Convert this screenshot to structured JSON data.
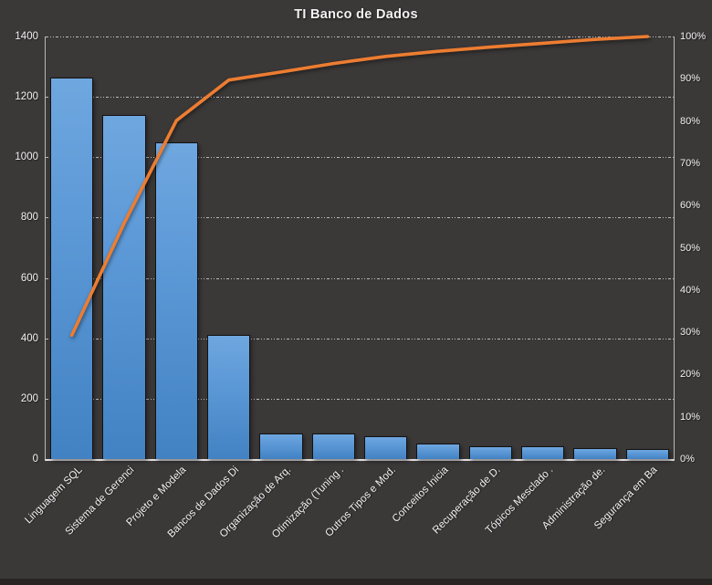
{
  "title": "TI Banco de Dados",
  "colors": {
    "background": "#3B3838",
    "bottom_strip": "#282424",
    "bar_gradient_top": "#6FA7DF",
    "bar_gradient_bottom": "#4282C3",
    "bar_border": "#131313",
    "line": "#ED7D31",
    "gridline": "#DBDBDB",
    "axis_line": "#B9B7B7",
    "text": "#F2F2F2"
  },
  "chart_data": {
    "type": "bar",
    "subtype": "pareto",
    "title": "TI Banco de Dados",
    "categories": [
      "Linguagem SQL",
      "Sistema de Gerenci",
      "Projeto e Modela",
      "Bancos de Dados Di",
      "Organização de Arq.",
      "Otimização (Tuning .",
      "Outros Tipos e Mod.",
      "Conceitos Inicia",
      "Recuperação de D.",
      "Tópicos Mesclado .",
      "Administração de.",
      "Segurança em Ba"
    ],
    "series": [
      {
        "name": "bars",
        "type": "bar",
        "axis": "left",
        "values": [
          1265,
          1140,
          1050,
          410,
          85,
          85,
          75,
          50,
          42,
          42,
          35,
          32
        ]
      },
      {
        "name": "cumulative_percent",
        "type": "line",
        "axis": "right",
        "values": [
          29.3,
          55.8,
          80.1,
          89.7,
          91.6,
          93.6,
          95.3,
          96.5,
          97.5,
          98.4,
          99.3,
          100
        ]
      }
    ],
    "left_axis": {
      "min": 0,
      "max": 1400,
      "step": 200,
      "ticks": [
        "0",
        "200",
        "400",
        "600",
        "800",
        "1000",
        "1200",
        "1400"
      ]
    },
    "right_axis": {
      "min": 0,
      "max": 100,
      "step": 10,
      "ticks": [
        "0%",
        "10%",
        "20%",
        "30%",
        "40%",
        "50%",
        "60%",
        "70%",
        "80%",
        "90%",
        "100%"
      ]
    },
    "grid": "horizontal-dashed",
    "legend_position": "none",
    "x_tick_rotation": 45
  }
}
